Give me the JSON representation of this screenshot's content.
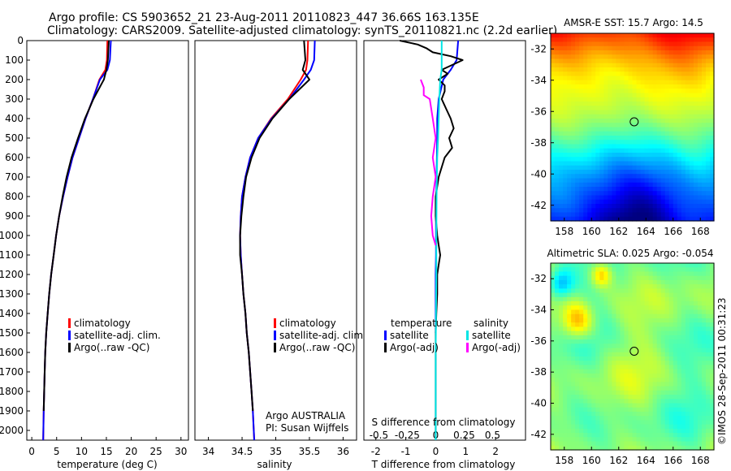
{
  "header": {
    "line1": "Argo profile: CS 5903652_21 23-Aug-2011 20110823_447 36.66S 163.135E",
    "line2": "Climatology: CARS2009. Satellite-adjusted climatology: synTS_20110821.nc (2.2d earlier)"
  },
  "colors": {
    "climatology": "#ff0000",
    "satellite": "#0000ff",
    "argo": "#000000",
    "sat_salinity": "#00e5e5",
    "argo_salinity": "#ff00ff"
  },
  "depth_ticks": [
    "0",
    "100",
    "200",
    "300",
    "400",
    "500",
    "600",
    "700",
    "800",
    "900",
    "1000",
    "1100",
    "1200",
    "1300",
    "1400",
    "1500",
    "1600",
    "1700",
    "1800",
    "1900",
    "2000"
  ],
  "legend_profiles": {
    "climatology": "climatology",
    "satellite": "satellite-adj. clim.",
    "argo": "Argo(..raw -QC)"
  },
  "legend_diff": {
    "temp_head": "temperature",
    "sal_head": "salinity",
    "temp_sat": "satellite",
    "temp_argo": "Argo(-adj)",
    "sal_sat": "satellite",
    "sal_argo": "Argo(-adj)"
  },
  "credit": {
    "line1": "Argo AUSTRALIA",
    "line2": "PI: Susan Wijffels"
  },
  "timestamp": "©IMOS 28-Sep-2011 00:31:23",
  "chart_data": [
    {
      "type": "line",
      "id": "temperature",
      "xlabel": "temperature (deg C)",
      "ylabel": "",
      "xlim": [
        -1,
        31.5
      ],
      "ylim": [
        2050,
        0
      ],
      "xticks": [
        "0",
        "5",
        "10",
        "15",
        "20",
        "25",
        "30"
      ],
      "series": [
        {
          "name": "climatology",
          "color": "#ff0000",
          "x": [
            15.2,
            15.1,
            14.8,
            13.6,
            12.3,
            10.8,
            9.5,
            8.2,
            7.2,
            6.3,
            5.5,
            4.9,
            4.4,
            3.9,
            3.5,
            3.2,
            2.9,
            2.7,
            2.6,
            2.5,
            2.4,
            2.3
          ],
          "y": [
            0,
            100,
            150,
            200,
            300,
            400,
            500,
            600,
            700,
            800,
            900,
            1000,
            1100,
            1200,
            1300,
            1400,
            1500,
            1600,
            1700,
            1800,
            1900,
            2050
          ]
        },
        {
          "name": "satellite-adj. clim.",
          "color": "#0000ff",
          "x": [
            15.9,
            15.7,
            15.2,
            13.7,
            12.3,
            10.8,
            9.5,
            8.2,
            7.2,
            6.3,
            5.5,
            4.9,
            4.4,
            3.9,
            3.5,
            3.2,
            2.9,
            2.7,
            2.6,
            2.5,
            2.4,
            2.3
          ],
          "y": [
            0,
            100,
            150,
            200,
            300,
            400,
            500,
            600,
            700,
            800,
            900,
            1000,
            1100,
            1200,
            1300,
            1400,
            1500,
            1600,
            1700,
            1800,
            1900,
            2050
          ]
        },
        {
          "name": "Argo(..raw -QC)",
          "color": "#000000",
          "x": [
            15.5,
            15.3,
            15.0,
            14.5,
            12.4,
            10.7,
            9.3,
            8.0,
            7.0,
            6.2,
            5.5,
            4.9,
            4.4,
            3.9,
            3.5,
            3.2,
            2.9,
            2.7,
            2.6,
            2.5,
            2.4
          ],
          "y": [
            0,
            100,
            150,
            200,
            300,
            400,
            500,
            600,
            700,
            800,
            900,
            1000,
            1100,
            1200,
            1300,
            1400,
            1500,
            1600,
            1700,
            1800,
            1900
          ]
        }
      ]
    },
    {
      "type": "line",
      "id": "salinity",
      "xlabel": "salinity",
      "ylabel": "",
      "xlim": [
        33.8,
        36.2
      ],
      "ylim": [
        2050,
        0
      ],
      "xticks": [
        "34",
        "34.5",
        "35",
        "35.5",
        "36"
      ],
      "series": [
        {
          "name": "climatology",
          "color": "#ff0000",
          "x": [
            35.48,
            35.47,
            35.45,
            35.37,
            35.18,
            34.93,
            34.74,
            34.62,
            34.55,
            34.5,
            34.48,
            34.47,
            34.48,
            34.5,
            34.52,
            34.55,
            34.57,
            34.6,
            34.62,
            34.64,
            34.66,
            34.68
          ],
          "y": [
            0,
            100,
            150,
            200,
            300,
            400,
            500,
            600,
            700,
            800,
            900,
            1000,
            1100,
            1200,
            1300,
            1400,
            1500,
            1600,
            1700,
            1800,
            1900,
            2050
          ]
        },
        {
          "name": "satellite-adj. clim.",
          "color": "#0000ff",
          "x": [
            35.58,
            35.57,
            35.52,
            35.42,
            35.2,
            34.94,
            34.74,
            34.62,
            34.55,
            34.5,
            34.48,
            34.47,
            34.48,
            34.5,
            34.52,
            34.55,
            34.57,
            34.6,
            34.62,
            34.64,
            34.66,
            34.68
          ],
          "y": [
            0,
            100,
            150,
            200,
            300,
            400,
            500,
            600,
            700,
            800,
            900,
            1000,
            1100,
            1200,
            1300,
            1400,
            1500,
            1600,
            1700,
            1800,
            1900,
            2050
          ]
        },
        {
          "name": "Argo(..raw -QC)",
          "color": "#000000",
          "x": [
            35.42,
            35.44,
            35.4,
            35.5,
            35.2,
            34.95,
            34.76,
            34.64,
            34.56,
            34.52,
            34.49,
            34.47,
            34.47,
            34.5,
            34.52,
            34.55,
            34.57,
            34.6,
            34.62,
            34.64,
            34.66
          ],
          "y": [
            0,
            100,
            150,
            200,
            300,
            400,
            500,
            600,
            700,
            800,
            900,
            1000,
            1100,
            1200,
            1300,
            1400,
            1500,
            1600,
            1700,
            1800,
            1900
          ]
        }
      ]
    },
    {
      "type": "line",
      "id": "difference",
      "xlabel": "T difference from climatology",
      "xlabel_top": "S difference from climatology",
      "ylabel": "",
      "xlim": [
        -2.4,
        3.0
      ],
      "ylim": [
        2050,
        0
      ],
      "xticks": [
        "-2",
        "-1",
        "0",
        "1",
        "2"
      ],
      "xticks_top": [
        "-0.5",
        "-0.25",
        "0",
        "0.25",
        "0.5"
      ],
      "series": [
        {
          "name": "temperature satellite",
          "color": "#0000ff",
          "x": [
            0.75,
            0.7,
            0.5,
            0.25,
            0.1,
            0.05,
            0.05,
            0.04,
            0.03,
            0.02,
            0.01,
            0.01,
            0.01,
            0.0,
            0.0,
            0.0
          ],
          "y": [
            0,
            100,
            150,
            200,
            300,
            400,
            500,
            600,
            700,
            800,
            900,
            1000,
            1100,
            1200,
            1300,
            1500
          ]
        },
        {
          "name": "temperature Argo(-adj)",
          "color": "#000000",
          "x": [
            -1.2,
            -0.6,
            -0.3,
            -0.1,
            0.5,
            0.9,
            0.2,
            0.4,
            0.1,
            0.3,
            0.3,
            0.2,
            0.35,
            0.5,
            0.6,
            0.45,
            0.55,
            0.3,
            0.2,
            0.1,
            0.0,
            0.0,
            0.05,
            0.1,
            0.15,
            0.1,
            0.05,
            0.05,
            0.05,
            0.02,
            0.0,
            0.0,
            0.0,
            0.0
          ],
          "y": [
            0,
            20,
            40,
            60,
            80,
            100,
            150,
            170,
            200,
            230,
            260,
            300,
            350,
            400,
            450,
            500,
            550,
            600,
            650,
            700,
            800,
            900,
            1000,
            1050,
            1100,
            1150,
            1200,
            1250,
            1300,
            1400,
            1500,
            1700,
            1900,
            2050
          ]
        },
        {
          "name": "salinity satellite",
          "color": "#00e5e5",
          "x": [
            0.2,
            0.2,
            0.2,
            0.15,
            0.12,
            0.1,
            0.08,
            0.05,
            0.04,
            0.03,
            0.02,
            0.02,
            0.01,
            0.0,
            0.0,
            0.0,
            0.0
          ],
          "y": [
            0,
            100,
            150,
            200,
            300,
            400,
            500,
            600,
            700,
            800,
            1000,
            1200,
            1400,
            1600,
            1800,
            1900,
            2050
          ]
        },
        {
          "name": "salinity Argo(-adj)",
          "color": "#ff00ff",
          "x": [
            -0.5,
            -0.4,
            -0.4,
            -0.2,
            -0.1,
            0.0,
            -0.1,
            0.0,
            -0.1,
            -0.15,
            -0.1,
            0.0
          ],
          "y": [
            200,
            240,
            280,
            300,
            400,
            500,
            600,
            700,
            800,
            900,
            1000,
            1050
          ]
        }
      ]
    },
    {
      "type": "heatmap",
      "id": "sst_map",
      "title": "AMSR-E SST: 15.7 Argo: 14.5",
      "xlim": [
        157,
        169
      ],
      "ylim": [
        -43,
        -31
      ],
      "xticks": [
        "158",
        "160",
        "162",
        "164",
        "166",
        "168"
      ],
      "yticks": [
        "-32",
        "-34",
        "-36",
        "-38",
        "-40",
        "-42"
      ],
      "argo_position": {
        "lon": 163.135,
        "lat": -36.66
      }
    },
    {
      "type": "heatmap",
      "id": "sla_map",
      "title": "Altimetric SLA: 0.025 Argo: -0.054",
      "xlim": [
        157,
        169
      ],
      "ylim": [
        -43,
        -31
      ],
      "xticks": [
        "158",
        "160",
        "162",
        "164",
        "166",
        "168"
      ],
      "yticks": [
        "-32",
        "-34",
        "-36",
        "-38",
        "-40",
        "-42"
      ],
      "argo_position": {
        "lon": 163.135,
        "lat": -36.66
      }
    }
  ]
}
